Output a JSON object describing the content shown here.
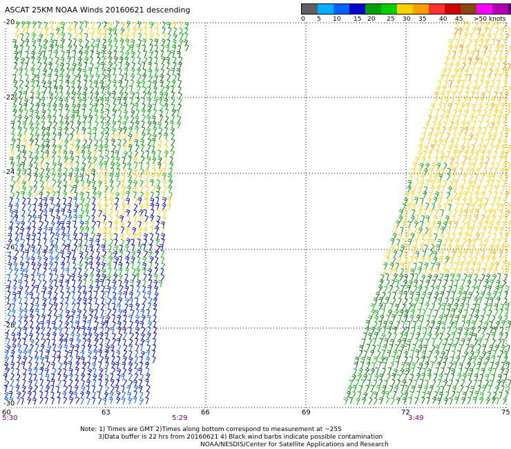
{
  "title": "ASCAT 25KM NOAA Winds 20160621 descending",
  "legend": {
    "labels": [
      "0",
      "5",
      "10",
      "15",
      "20",
      "25",
      "30",
      "35",
      "40",
      "45",
      ">50 knots"
    ],
    "colors": [
      "#606060",
      "#00b0ff",
      "#0060ff",
      "#0000cc",
      "#00a000",
      "#00d000",
      "#ffd000",
      "#ffa000",
      "#ff3030",
      "#d00000",
      "#8b4513",
      "#ff00ff",
      "#b000b0",
      "#5a0078"
    ]
  },
  "map": {
    "lat_labels": [
      "-20",
      "-22",
      "-24",
      "-26",
      "-28",
      "-30"
    ],
    "lon_labels": [
      "60",
      "63",
      "66",
      "69",
      "72",
      "75"
    ],
    "time_labels": [
      "5:30",
      "5:29",
      "3:49"
    ]
  },
  "notes": {
    "line1": "Note: 1) Times are GMT 2)Times along bottom correspond to measurement at ~25S",
    "line2": "3)Data buffer is 22 hrs from 20160621 4) Black wind barbs indicate possible contamination",
    "line3": "NOAA/NESDIS/Center for Satellite Applications and Research"
  }
}
